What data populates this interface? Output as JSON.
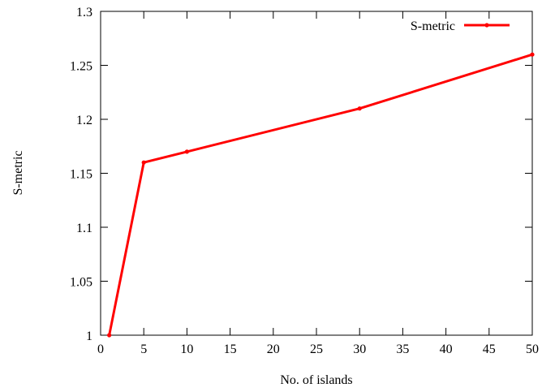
{
  "chart_data": {
    "type": "line",
    "xlabel": "No. of islands",
    "ylabel": "S-metric",
    "xlim": [
      0,
      50
    ],
    "ylim": [
      1,
      1.3
    ],
    "xticks": [
      0,
      5,
      10,
      15,
      20,
      25,
      30,
      35,
      40,
      45,
      50
    ],
    "yticks": [
      1,
      1.05,
      1.1,
      1.15,
      1.2,
      1.25,
      1.3
    ],
    "xtick_labels": [
      "0",
      "5",
      "10",
      "15",
      "20",
      "25",
      "30",
      "35",
      "40",
      "45",
      "50"
    ],
    "ytick_labels": [
      "1",
      "1.05",
      "1.1",
      "1.15",
      "1.2",
      "1.25",
      "1.3"
    ],
    "grid": false,
    "legend_position": "top-right",
    "series": [
      {
        "name": "S-metric",
        "color": "#ff0000",
        "marker": "dot",
        "x": [
          1,
          5,
          10,
          30,
          50
        ],
        "y": [
          1.0,
          1.16,
          1.17,
          1.21,
          1.26
        ]
      }
    ]
  }
}
